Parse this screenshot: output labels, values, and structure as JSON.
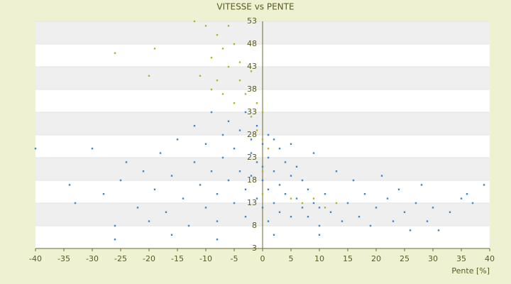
{
  "chart_data": {
    "type": "scatter",
    "title": "VITESSE vs PENTE",
    "xlabel": "Pente [%]",
    "xlim": [
      -40,
      40
    ],
    "xticks": [
      -40,
      -35,
      -30,
      -25,
      -20,
      -15,
      -10,
      -5,
      0,
      5,
      10,
      15,
      20,
      25,
      30,
      35,
      40
    ],
    "ylim": [
      3,
      53
    ],
    "yticks": [
      3,
      8,
      13,
      18,
      23,
      28,
      33,
      38,
      43,
      48,
      53
    ],
    "series": [
      {
        "color": "#3a87c8",
        "x": [
          -40,
          -34,
          -33,
          -30,
          -28,
          -26,
          -25,
          -24,
          -22,
          -21,
          -20,
          -19,
          -18,
          -17,
          -16,
          -15,
          -14,
          -13,
          -12,
          -12,
          -11,
          -10,
          -10,
          -9,
          -9,
          -8,
          -8,
          -7,
          -7,
          -6,
          -6,
          -5,
          -5,
          -4,
          -4,
          -3,
          -3,
          -3,
          -2,
          -2,
          -2,
          -1,
          -1,
          -1,
          0,
          0,
          0,
          0,
          1,
          1,
          1,
          1,
          2,
          2,
          2,
          3,
          3,
          3,
          4,
          4,
          5,
          5,
          5,
          6,
          6,
          7,
          7,
          8,
          8,
          9,
          9,
          10,
          10,
          11,
          12,
          13,
          14,
          15,
          16,
          17,
          18,
          19,
          20,
          21,
          22,
          23,
          24,
          25,
          26,
          27,
          28,
          29,
          30,
          31,
          33,
          35,
          36,
          37,
          39,
          -26,
          -16,
          -8,
          2,
          10
        ],
        "values": [
          25,
          17,
          13,
          25,
          15,
          8,
          18,
          22,
          12,
          20,
          9,
          16,
          24,
          11,
          19,
          27,
          14,
          8,
          22,
          30,
          17,
          12,
          26,
          33,
          20,
          15,
          9,
          28,
          23,
          18,
          31,
          13,
          25,
          20,
          29,
          16,
          33,
          10,
          24,
          19,
          27,
          14,
          22,
          30,
          18,
          26,
          12,
          21,
          28,
          16,
          23,
          9,
          20,
          27,
          13,
          25,
          17,
          11,
          22,
          15,
          19,
          26,
          10,
          14,
          21,
          12,
          18,
          16,
          10,
          13,
          24,
          12,
          8,
          15,
          11,
          20,
          9,
          13,
          18,
          10,
          15,
          8,
          12,
          19,
          14,
          9,
          16,
          11,
          7,
          13,
          17,
          9,
          12,
          7,
          11,
          14,
          15,
          13,
          17,
          5,
          6,
          5,
          6,
          6
        ]
      },
      {
        "color": "#b3b328",
        "x": [
          -26,
          -19,
          -20,
          -12,
          -10,
          -9,
          -8,
          -8,
          -7,
          -7,
          -6,
          -6,
          -5,
          -5,
          -4,
          -4,
          -3,
          -2,
          -2,
          -1,
          -1,
          0,
          0,
          1,
          0,
          0,
          5,
          7,
          9,
          11,
          13,
          -9,
          -11
        ],
        "values": [
          46,
          47,
          41,
          53,
          52,
          45,
          50,
          40,
          47,
          37,
          52,
          43,
          48,
          35,
          40,
          44,
          37,
          32,
          42,
          35,
          29,
          33,
          27,
          25,
          20,
          15,
          14,
          13,
          14,
          12,
          13,
          38,
          41
        ]
      }
    ]
  }
}
